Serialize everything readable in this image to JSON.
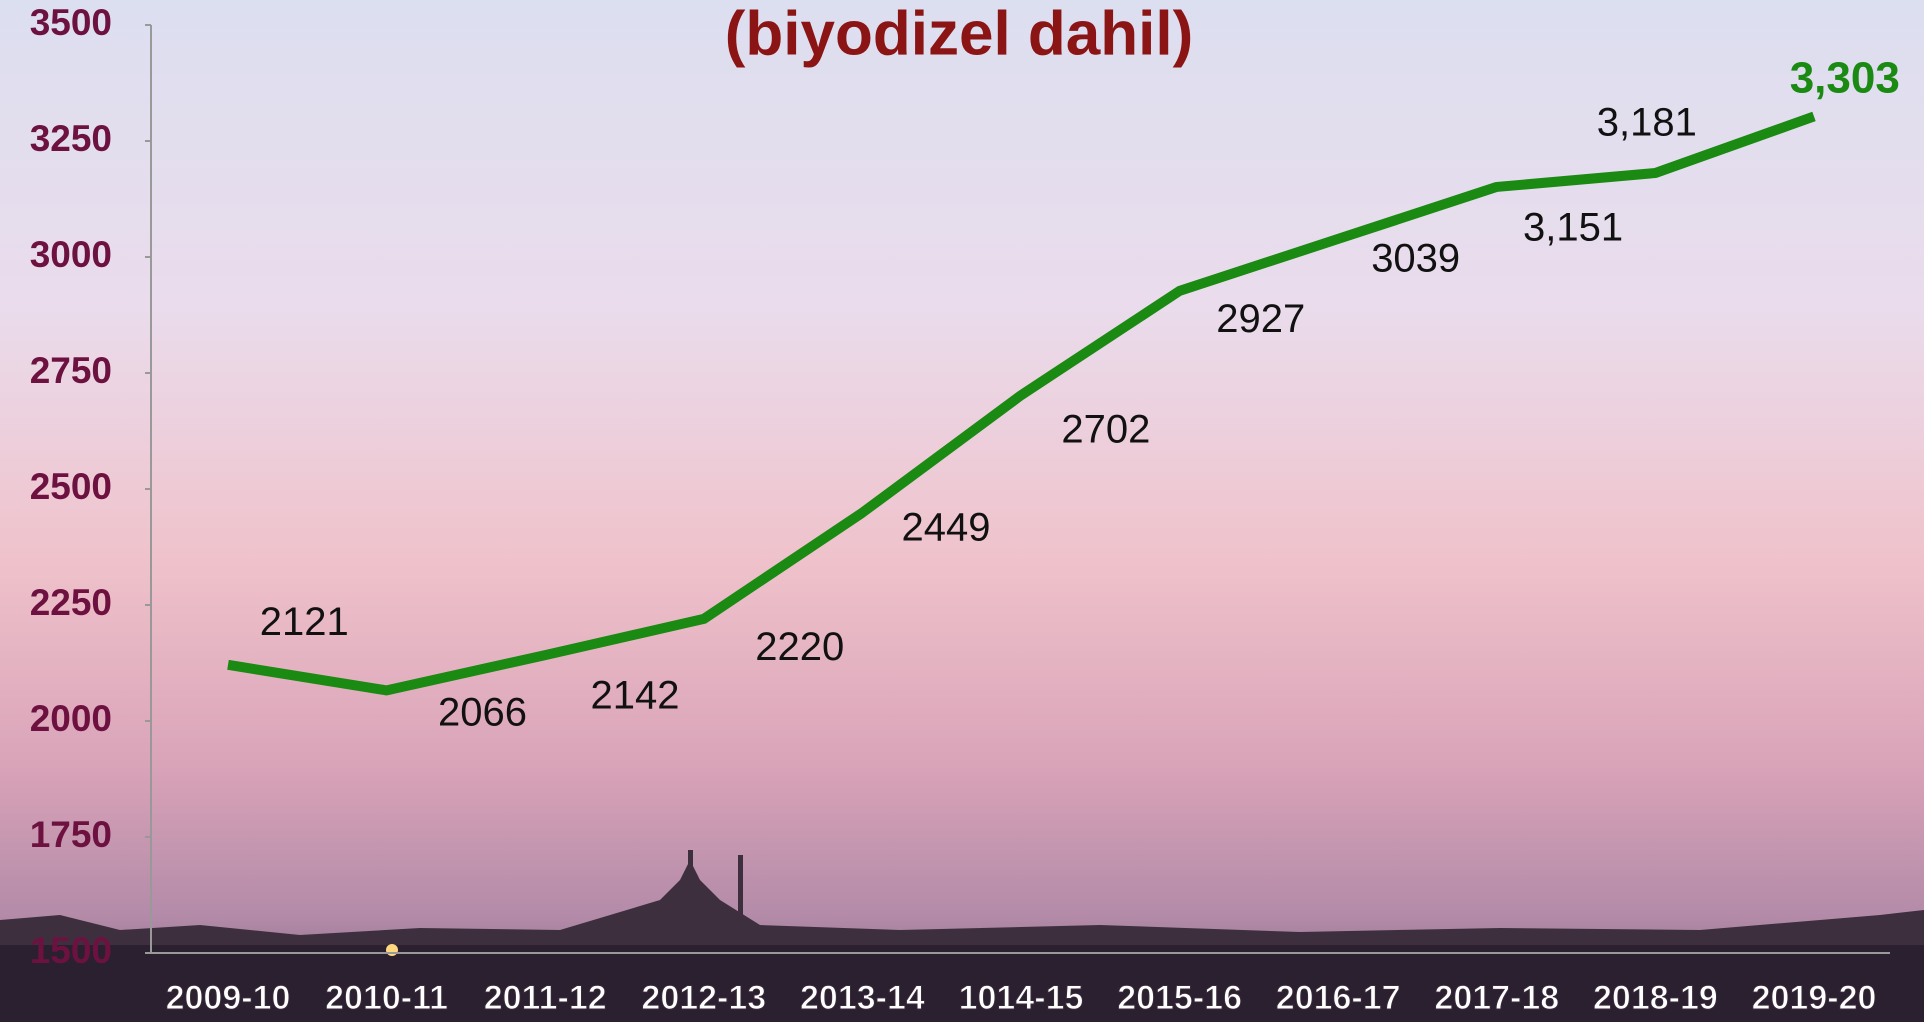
{
  "chart_data": {
    "type": "line",
    "title": "(biyodizel dahil)",
    "categories": [
      "2009-10",
      "2010-11",
      "2011-12",
      "2012-13",
      "2013-14",
      "1014-15",
      "2015-16",
      "2016-17",
      "2017-18",
      "2018-19",
      "2019-20"
    ],
    "series": [
      {
        "color": "#1a8a12",
        "values": [
          2121,
          2066,
          2142,
          2220,
          2449,
          2702,
          2927,
          3039,
          3151,
          3181,
          3303
        ],
        "value_labels": [
          "2121",
          "2066",
          "2142",
          "2220",
          "2449",
          "2702",
          "2927",
          "3039",
          "3,151",
          "3,181",
          "3,303"
        ]
      }
    ],
    "ylim": [
      1500,
      3500
    ],
    "yticks": [
      1500,
      1750,
      2000,
      2250,
      2500,
      2750,
      3000,
      3250,
      3500
    ]
  }
}
